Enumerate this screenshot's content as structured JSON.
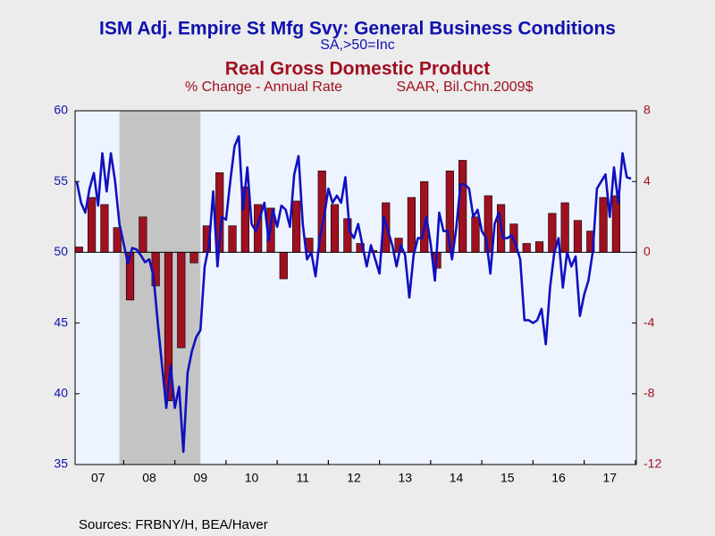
{
  "chart_data": {
    "type": "combo",
    "title": "ISM Adj. Empire St Mfg Svy: General Business Conditions",
    "subtitle": "SA,>50=Inc",
    "title2": "Real Gross Domestic Product",
    "subtitle2": [
      "% Change - Annual Rate",
      "SAAR, Bil.Chn.2009$"
    ],
    "source": "Sources:  FRBNY/H, BEA/Haver",
    "xlim": [
      2007.05,
      2018.02
    ],
    "xticks": [
      {
        "value": 2007.5,
        "label": "07"
      },
      {
        "value": 2008.5,
        "label": "08"
      },
      {
        "value": 2009.5,
        "label": "09"
      },
      {
        "value": 2010.5,
        "label": "10"
      },
      {
        "value": 2011.5,
        "label": "11"
      },
      {
        "value": 2012.5,
        "label": "12"
      },
      {
        "value": 2013.5,
        "label": "13"
      },
      {
        "value": 2014.5,
        "label": "14"
      },
      {
        "value": 2015.5,
        "label": "15"
      },
      {
        "value": 2016.5,
        "label": "16"
      },
      {
        "value": 2017.5,
        "label": "17"
      }
    ],
    "ylim": [
      35,
      60
    ],
    "yticks": [
      35,
      40,
      45,
      50,
      55,
      60
    ],
    "y2lim": [
      -12,
      8
    ],
    "y2ticks": [
      -12,
      -8,
      -4,
      0,
      4,
      8
    ],
    "shaded_regions": [
      [
        2007.917,
        2009.5
      ]
    ],
    "series": [
      {
        "type": "line",
        "color": "#1010c0",
        "x": [
          2007.083,
          2007.167,
          2007.25,
          2007.333,
          2007.417,
          2007.5,
          2007.583,
          2007.667,
          2007.75,
          2007.833,
          2007.917,
          2008,
          2008.083,
          2008.167,
          2008.25,
          2008.333,
          2008.417,
          2008.5,
          2008.583,
          2008.667,
          2008.75,
          2008.833,
          2008.917,
          2009,
          2009.083,
          2009.167,
          2009.25,
          2009.333,
          2009.417,
          2009.5,
          2009.583,
          2009.667,
          2009.75,
          2009.833,
          2009.917,
          2010,
          2010.083,
          2010.167,
          2010.25,
          2010.333,
          2010.417,
          2010.5,
          2010.583,
          2010.667,
          2010.75,
          2010.833,
          2010.917,
          2011,
          2011.083,
          2011.167,
          2011.25,
          2011.333,
          2011.417,
          2011.5,
          2011.583,
          2011.667,
          2011.75,
          2011.833,
          2011.917,
          2012,
          2012.083,
          2012.167,
          2012.25,
          2012.333,
          2012.417,
          2012.5,
          2012.583,
          2012.667,
          2012.75,
          2012.833,
          2012.917,
          2013,
          2013.083,
          2013.167,
          2013.25,
          2013.333,
          2013.417,
          2013.5,
          2013.583,
          2013.667,
          2013.75,
          2013.833,
          2013.917,
          2014,
          2014.083,
          2014.167,
          2014.25,
          2014.333,
          2014.417,
          2014.5,
          2014.583,
          2014.667,
          2014.75,
          2014.833,
          2014.917,
          2015,
          2015.083,
          2015.167,
          2015.25,
          2015.333,
          2015.417,
          2015.5,
          2015.583,
          2015.667,
          2015.75,
          2015.833,
          2015.917,
          2016,
          2016.083,
          2016.167,
          2016.25,
          2016.333,
          2016.417,
          2016.5,
          2016.583,
          2016.667,
          2016.75,
          2016.833,
          2016.917,
          2017,
          2017.083,
          2017.167,
          2017.25,
          2017.333,
          2017.417,
          2017.5,
          2017.583,
          2017.667,
          2017.75,
          2017.833,
          2017.917
        ],
        "values": [
          55.0,
          53.5,
          52.8,
          54.5,
          55.6,
          53.3,
          57.0,
          54.3,
          57.0,
          55.0,
          52.0,
          50.6,
          49.2,
          50.3,
          50.2,
          49.8,
          49.3,
          49.5,
          48.3,
          45.0,
          42.0,
          39.0,
          42.0,
          39.0,
          40.5,
          35.9,
          41.5,
          43.0,
          44.0,
          44.5,
          49.0,
          50.5,
          54.3,
          49.0,
          52.5,
          52.3,
          55.0,
          57.5,
          58.2,
          53.0,
          56.0,
          52.0,
          51.5,
          52.5,
          53.5,
          50.8,
          53.0,
          51.8,
          53.3,
          53.0,
          51.8,
          55.5,
          56.8,
          52.0,
          49.5,
          50.0,
          48.3,
          51.0,
          52.5,
          54.5,
          53.5,
          54.0,
          53.5,
          55.3,
          51.5,
          51.0,
          52.0,
          50.5,
          49.0,
          50.5,
          49.5,
          48.5,
          52.5,
          51.5,
          50.5,
          49.0,
          50.5,
          49.8,
          46.8,
          49.8,
          51.0,
          51.0,
          52.5,
          50.6,
          48.0,
          52.8,
          51.5,
          51.5,
          49.5,
          51.7,
          54.8,
          54.8,
          54.5,
          52.5,
          53.0,
          51.5,
          51.0,
          48.5,
          52.0,
          52.8,
          51.0,
          51.0,
          51.2,
          50.5,
          49.5,
          45.2,
          45.2,
          45.0,
          45.2,
          46.0,
          43.5,
          47.5,
          50.0,
          51.0,
          47.5,
          50.0,
          49.0,
          49.7,
          45.5,
          47.0,
          48.0,
          50.0,
          54.5,
          55.0,
          55.5,
          52.5,
          56.0,
          53.5,
          57.0,
          55.3,
          55.2
        ]
      },
      {
        "type": "bar",
        "axis": "y2",
        "color": "#a01020",
        "x": [
          2007.125,
          2007.375,
          2007.625,
          2007.875,
          2008.125,
          2008.375,
          2008.625,
          2008.875,
          2009.125,
          2009.375,
          2009.625,
          2009.875,
          2010.125,
          2010.375,
          2010.625,
          2010.875,
          2011.125,
          2011.375,
          2011.625,
          2011.875,
          2012.125,
          2012.375,
          2012.625,
          2012.875,
          2013.125,
          2013.375,
          2013.625,
          2013.875,
          2014.125,
          2014.375,
          2014.625,
          2014.875,
          2015.125,
          2015.375,
          2015.625,
          2015.875,
          2016.125,
          2016.375,
          2016.625,
          2016.875,
          2017.125,
          2017.375,
          2017.625
        ],
        "values": [
          0.3,
          3.1,
          2.7,
          1.4,
          -2.7,
          2.0,
          -1.9,
          -8.4,
          -5.4,
          -0.6,
          1.5,
          4.5,
          1.5,
          3.7,
          2.7,
          2.5,
          -1.5,
          2.9,
          0.8,
          4.6,
          2.7,
          1.9,
          0.5,
          0.1,
          2.8,
          0.8,
          3.1,
          4.0,
          -0.9,
          4.6,
          5.2,
          2.0,
          3.2,
          2.7,
          1.6,
          0.5,
          0.6,
          2.2,
          2.8,
          1.8,
          1.2,
          3.1,
          3.2
        ]
      }
    ]
  }
}
